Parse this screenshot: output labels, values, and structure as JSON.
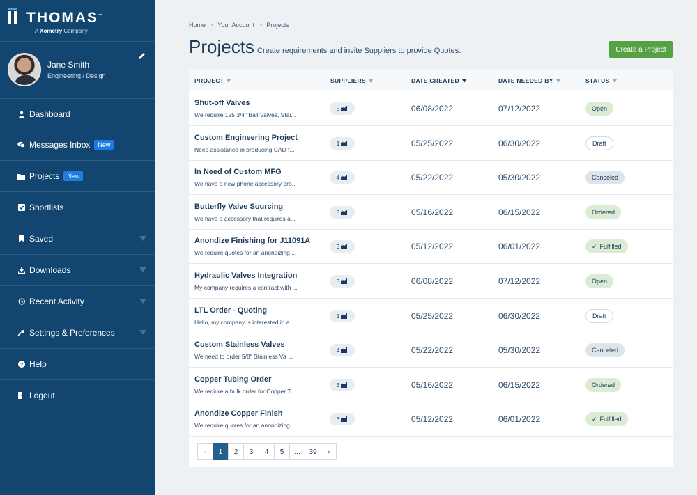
{
  "brand": {
    "name": "THOMAS",
    "tm": "™",
    "sub_prefix": "A",
    "sub_brand": "Xometry",
    "sub_suffix": "Company"
  },
  "profile": {
    "name": "Jane Smith",
    "role": "Engineering / Design"
  },
  "nav": [
    {
      "label": "Dashboard",
      "icon": "user-icon"
    },
    {
      "label": "Messages Inbox",
      "icon": "chat-icon",
      "badge": "New"
    },
    {
      "label": "Projects",
      "icon": "folder-icon",
      "badge": "New"
    },
    {
      "label": "Shortlists",
      "icon": "checklist-icon"
    },
    {
      "label": "Saved",
      "icon": "bookmark-icon",
      "expandable": true
    },
    {
      "label": "Downloads",
      "icon": "download-icon",
      "expandable": true
    },
    {
      "label": "Recent Activity",
      "icon": "history-icon",
      "expandable": true
    },
    {
      "label": "Settings & Preferences",
      "icon": "settings-icon",
      "expandable": true
    },
    {
      "label": "Help",
      "icon": "help-icon"
    },
    {
      "label": "Logout",
      "icon": "logout-icon"
    }
  ],
  "breadcrumb": [
    "Home",
    "Your Account",
    "Projects"
  ],
  "breadcrumb_sep": ">",
  "page": {
    "title": "Projects",
    "subtitle": "Create requirements and invite Suppliers to provide Quotes.",
    "create_button": "Create a Project"
  },
  "table": {
    "columns": [
      "PROJECT",
      "SUPPLIERS",
      "DATE CREATED",
      "DATE NEEDED BY",
      "STATUS"
    ],
    "rows": [
      {
        "name": "Shut-off Valves",
        "desc": "We require 125 3/4\" Ball Valves, Stai...",
        "suppliers": "5",
        "created": "06/08/2022",
        "needed": "07/12/2022",
        "status": "Open"
      },
      {
        "name": "Custom Engineering Project",
        "desc": "Need assistance in producing CAD f...",
        "suppliers": "1",
        "created": "05/25/2022",
        "needed": "06/30/2022",
        "status": "Draft"
      },
      {
        "name": "In Need of Custom MFG",
        "desc": "We have a new phone accessory pro...",
        "suppliers": "4",
        "created": "05/22/2022",
        "needed": "05/30/2022",
        "status": "Canceled"
      },
      {
        "name": "Butterfly Valve Sourcing",
        "desc": "We have a accessory that requires a...",
        "suppliers": "3",
        "created": "05/16/2022",
        "needed": "06/15/2022",
        "status": "Ordered"
      },
      {
        "name": "Anondize Finishing for J11091A",
        "desc": "We require quotes for an anondizing ...",
        "suppliers": "3",
        "created": "05/12/2022",
        "needed": "06/01/2022",
        "status": "Fulfilled"
      },
      {
        "name": "Hydraulic Valves Integration",
        "desc": "My company requires a contract with ...",
        "suppliers": "5",
        "created": "06/08/2022",
        "needed": "07/12/2022",
        "status": "Open"
      },
      {
        "name": "LTL Order - Quoting",
        "desc": "Hello, my company is interested in a...",
        "suppliers": "1",
        "created": "05/25/2022",
        "needed": "06/30/2022",
        "status": "Draft"
      },
      {
        "name": "Custom Stainless Valves",
        "desc": "We need to order 5/8\" Stainless Va ...",
        "suppliers": "4",
        "created": "05/22/2022",
        "needed": "05/30/2022",
        "status": "Canceled"
      },
      {
        "name": "Copper Tubing Order",
        "desc": "We reqiure a bulk order for Copper T...",
        "suppliers": "3",
        "created": "05/16/2022",
        "needed": "06/15/2022",
        "status": "Ordered"
      },
      {
        "name": "Anondize Copper Finish",
        "desc": "We require quotes for an anondizing ...",
        "suppliers": "3",
        "created": "05/12/2022",
        "needed": "06/01/2022",
        "status": "Fulfilled"
      }
    ]
  },
  "pagination": {
    "prev": "‹",
    "pages": [
      "1",
      "2",
      "3",
      "4",
      "5",
      "…",
      "39"
    ],
    "current": "1",
    "next": "›"
  },
  "colors": {
    "sidebar": "#124570",
    "accent_green": "#56a144",
    "badge_blue": "#1e7be0",
    "current_page": "#23608e"
  }
}
